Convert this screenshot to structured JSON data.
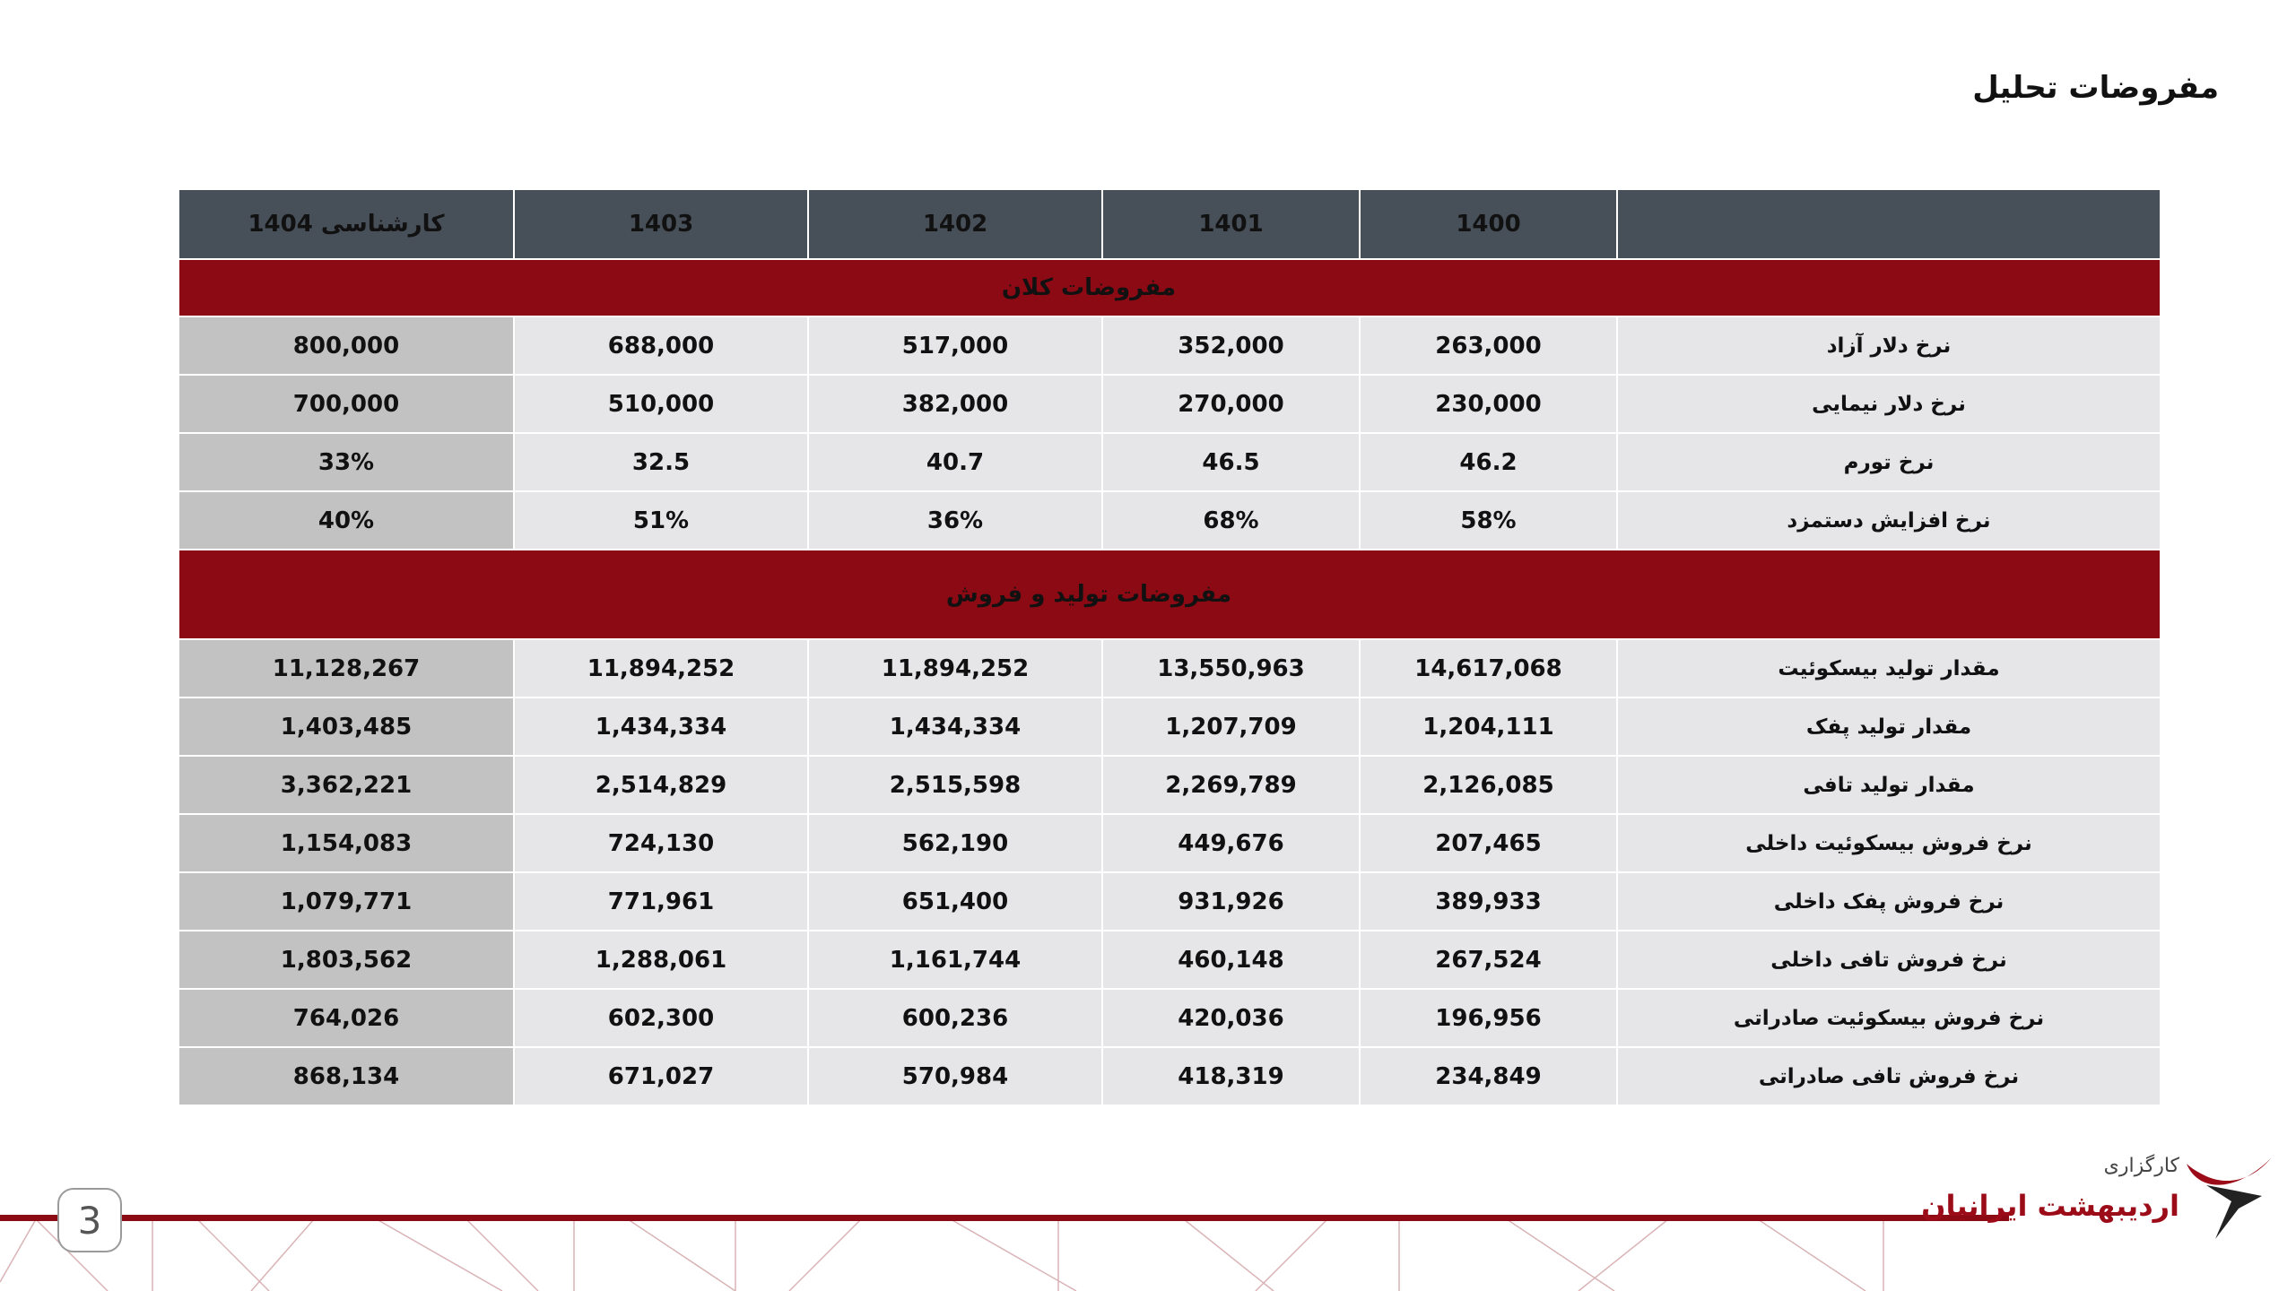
{
  "page": {
    "title": "مفروضات تحلیل",
    "page_number": "3"
  },
  "table": {
    "headers": [
      "",
      "1400",
      "1401",
      "1402",
      "1403",
      "کارشناسی 1404"
    ],
    "sections": [
      {
        "title": "مفروضات کلان",
        "rows": [
          {
            "label": "نرخ دلار آزاد",
            "values": [
              "263,000",
              "352,000",
              "517,000",
              "688,000",
              "800,000"
            ]
          },
          {
            "label": "نرخ دلار نیمایی",
            "values": [
              "230,000",
              "270,000",
              "382,000",
              "510,000",
              "700,000"
            ]
          },
          {
            "label": "نرخ تورم",
            "values": [
              "46.2",
              "46.5",
              "40.7",
              "32.5",
              "33%"
            ]
          },
          {
            "label": "نرخ افزایش دستمزد",
            "values": [
              "58%",
              "68%",
              "36%",
              "51%",
              "40%"
            ]
          }
        ]
      },
      {
        "title": "مفروضات تولید و فروش",
        "rows": [
          {
            "label": "مقدار تولید بیسکوئیت",
            "values": [
              "14,617,068",
              "13,550,963",
              "11,894,252",
              "11,894,252",
              "11,128,267"
            ]
          },
          {
            "label": "مقدار تولید پفک",
            "values": [
              "1,204,111",
              "1,207,709",
              "1,434,334",
              "1,434,334",
              "1,403,485"
            ]
          },
          {
            "label": "مقدار تولید تافی",
            "values": [
              "2,126,085",
              "2,269,789",
              "2,515,598",
              "2,514,829",
              "3,362,221"
            ]
          },
          {
            "label": "نرخ فروش بیسکوئیت داخلی",
            "values": [
              "207,465",
              "449,676",
              "562,190",
              "724,130",
              "1,154,083"
            ]
          },
          {
            "label": "نرخ فروش پفک داخلی",
            "values": [
              "389,933",
              "931,926",
              "651,400",
              "771,961",
              "1,079,771"
            ]
          },
          {
            "label": "نرخ فروش تافی داخلی",
            "values": [
              "267,524",
              "460,148",
              "1,161,744",
              "1,288,061",
              "1,803,562"
            ]
          },
          {
            "label": "نرخ فروش بیسکوئیت صادراتی",
            "values": [
              "196,956",
              "420,036",
              "600,236",
              "602,300",
              "764,026"
            ]
          },
          {
            "label": "نرخ فروش تافی صادراتی",
            "values": [
              "234,849",
              "418,319",
              "570,984",
              "671,027",
              "868,134"
            ]
          }
        ]
      }
    ]
  },
  "logo": {
    "small_text": "کارگزاری",
    "main_text": "اردیبهشت ایرانیان"
  },
  "colors": {
    "header_bg": "#474f59",
    "section_bg": "#8b0a14",
    "cell_bg": "#e6e6e9",
    "estimate_bg": "#c2c2c2",
    "accent": "#8b0a14"
  }
}
